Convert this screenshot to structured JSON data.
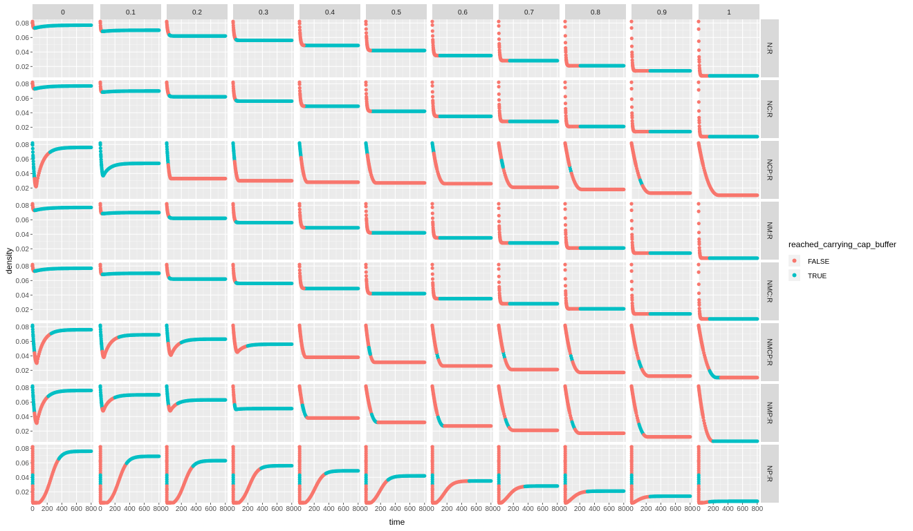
{
  "chart_data": {
    "type": "scatter",
    "layout": "facet_grid",
    "xlabel": "time",
    "ylabel": "density",
    "xlim": [
      0,
      830
    ],
    "ylim": [
      0.005,
      0.085
    ],
    "x_ticks": [
      0,
      200,
      400,
      600,
      800
    ],
    "x_tick_labels": [
      "0",
      "200",
      "400",
      "600",
      "800"
    ],
    "y_ticks": [
      0.02,
      0.04,
      0.06,
      0.08
    ],
    "y_tick_labels": [
      "0.02",
      "0.04",
      "0.06",
      "0.08"
    ],
    "grid": true,
    "col_facets": [
      "0",
      "0.1",
      "0.2",
      "0.3",
      "0.4",
      "0.5",
      "0.6",
      "0.7",
      "0.8",
      "0.9",
      "1"
    ],
    "row_facets": [
      "N:R",
      "NC:R",
      "NCP:R",
      "NM:R",
      "NMC:R",
      "NMCP:R",
      "NMP:R",
      "NP:R"
    ],
    "legend": {
      "title": "reached_carrying_cap_buffer",
      "position": "right",
      "entries": [
        {
          "label": "FALSE",
          "color": "#F8766D"
        },
        {
          "label": "TRUE",
          "color": "#00BFC4"
        }
      ]
    },
    "equilibrium_by_col": [
      0.077,
      0.07,
      0.063,
      0.056,
      0.049,
      0.042,
      0.035,
      0.028,
      0.021,
      0.014,
      0.007
    ],
    "rows": {
      "N:R": {
        "kind": "decay",
        "start": 0.082,
        "min": [
          0.072,
          0.068,
          0.062,
          0.056,
          0.049,
          0.042,
          0.035,
          0.028,
          0.021,
          0.014,
          0.007
        ],
        "turn": 30,
        "false_until": [
          30,
          30,
          35,
          40,
          60,
          80,
          100,
          150,
          200,
          250,
          150
        ]
      },
      "NC:R": {
        "kind": "decay",
        "start": 0.082,
        "min": [
          0.072,
          0.068,
          0.062,
          0.056,
          0.049,
          0.042,
          0.035,
          0.028,
          0.021,
          0.014,
          0.007
        ],
        "turn": 30,
        "false_until": [
          30,
          30,
          35,
          40,
          60,
          80,
          100,
          150,
          200,
          250,
          150
        ]
      },
      "NCP:R": {
        "kind": "dip",
        "start": 0.082,
        "min": [
          0.022,
          0.037,
          0.033,
          0.03,
          0.028,
          0.027,
          0.026,
          0.021,
          0.018,
          0.013,
          0.01
        ],
        "turn": [
          50,
          40,
          60,
          80,
          110,
          140,
          170,
          200,
          230,
          260,
          280
        ],
        "eq": [
          0.076,
          0.054,
          0.033,
          0.03,
          0.028,
          0.027,
          0.026,
          0.021,
          0.018,
          0.013,
          0.01
        ],
        "true_band": [
          [
            0,
            25
          ],
          [
            0,
            25
          ],
          [
            0,
            20
          ],
          [
            0,
            20
          ],
          [
            0,
            20
          ],
          [
            0,
            20
          ],
          [
            0,
            20
          ],
          [
            40,
            60
          ],
          [
            60,
            80
          ],
          [
            120,
            150
          ],
          [
            0,
            0
          ]
        ],
        "true_after": [
          240,
          20,
          900,
          900,
          900,
          900,
          900,
          900,
          900,
          900,
          900
        ]
      },
      "NM:R": {
        "kind": "decay",
        "start": 0.082,
        "min": [
          0.072,
          0.068,
          0.062,
          0.056,
          0.049,
          0.042,
          0.035,
          0.028,
          0.021,
          0.014,
          0.007
        ],
        "turn": 30,
        "false_until": [
          30,
          30,
          35,
          40,
          60,
          80,
          100,
          150,
          200,
          250,
          150
        ]
      },
      "NMC:R": {
        "kind": "decay",
        "start": 0.082,
        "min": [
          0.072,
          0.068,
          0.062,
          0.056,
          0.049,
          0.042,
          0.035,
          0.028,
          0.021,
          0.014,
          0.007
        ],
        "turn": 30,
        "false_until": [
          30,
          30,
          35,
          40,
          60,
          80,
          100,
          150,
          200,
          250,
          150
        ]
      },
      "NMCP:R": {
        "kind": "dip",
        "start": 0.082,
        "min": [
          0.03,
          0.038,
          0.041,
          0.045,
          0.038,
          0.031,
          0.026,
          0.021,
          0.017,
          0.012,
          0.01
        ],
        "turn": [
          60,
          50,
          60,
          60,
          90,
          120,
          150,
          180,
          210,
          240,
          250
        ],
        "eq": [
          0.076,
          0.069,
          0.063,
          0.056,
          0.038,
          0.031,
          0.026,
          0.021,
          0.017,
          0.012,
          0.01
        ],
        "true_band": [
          [
            0,
            25
          ],
          [
            0,
            25
          ],
          [
            0,
            20
          ],
          [
            0,
            0
          ],
          [
            0,
            0
          ],
          [
            40,
            60
          ],
          [
            60,
            80
          ],
          [
            60,
            80
          ],
          [
            80,
            100
          ],
          [
            100,
            140
          ],
          [
            150,
            300
          ]
        ],
        "true_after": [
          250,
          250,
          200,
          200,
          900,
          900,
          900,
          900,
          900,
          900,
          900
        ]
      },
      "NMP:R": {
        "kind": "dip",
        "start": 0.082,
        "min": [
          0.031,
          0.048,
          0.048,
          0.05,
          0.038,
          0.032,
          0.027,
          0.021,
          0.017,
          0.012,
          0.006
        ],
        "turn": [
          60,
          40,
          50,
          40,
          120,
          160,
          160,
          200,
          200,
          220,
          200
        ],
        "eq": [
          0.076,
          0.07,
          0.063,
          0.051,
          0.038,
          0.032,
          0.027,
          0.021,
          0.017,
          0.012,
          0.006
        ],
        "true_band": [
          [
            0,
            25
          ],
          [
            0,
            25
          ],
          [
            0,
            25
          ],
          [
            0,
            0
          ],
          [
            40,
            100
          ],
          [
            80,
            160
          ],
          [
            80,
            160
          ],
          [
            90,
            140
          ],
          [
            90,
            130
          ],
          [
            100,
            160
          ],
          [
            200,
            900
          ]
        ],
        "true_after": [
          210,
          200,
          150,
          20,
          900,
          900,
          900,
          900,
          900,
          900,
          900
        ]
      },
      "NP:R": {
        "kind": "rise",
        "start": 0.082,
        "min": [
          0.004,
          0.004,
          0.004,
          0.004,
          0.004,
          0.004,
          0.004,
          0.004,
          0.004,
          0.004,
          0.004
        ],
        "eq": [
          0.076,
          0.069,
          0.063,
          0.056,
          0.049,
          0.042,
          0.035,
          0.028,
          0.021,
          0.014,
          0.007
        ],
        "midpoint": [
          250,
          250,
          240,
          220,
          210,
          190,
          160,
          130,
          90,
          60,
          20
        ],
        "true_after": [
          360,
          360,
          360,
          380,
          360,
          300,
          500,
          360,
          300,
          250,
          150
        ]
      }
    }
  }
}
